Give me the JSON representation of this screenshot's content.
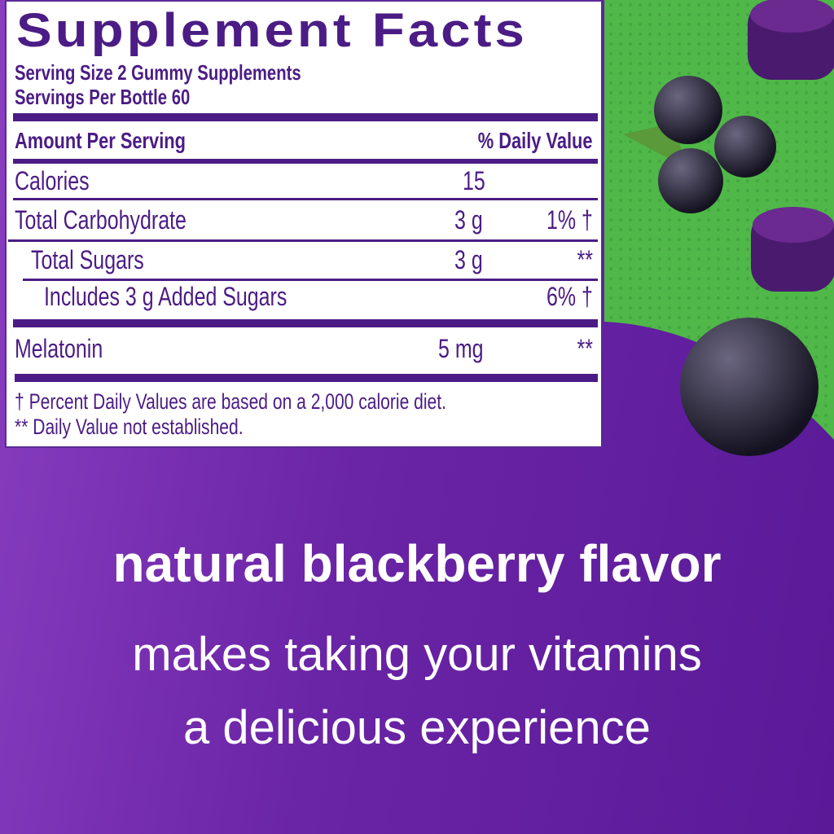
{
  "label": {
    "title": "Supplement Facts",
    "serving_size": "Serving Size 2 Gummy Supplements",
    "servings_per": "Servings Per Bottle 60",
    "header_left": "Amount Per Serving",
    "header_right": "% Daily Value",
    "rows": [
      {
        "name": "Calories",
        "amount": "15",
        "dv": ""
      },
      {
        "name": "Total Carbohydrate",
        "amount": "3 g",
        "dv": "1% †"
      },
      {
        "name": "Total Sugars",
        "amount": "3 g",
        "dv": "**"
      },
      {
        "name": "Includes 3 g Added Sugars",
        "amount": "",
        "dv": "6% †"
      },
      {
        "name": "Melatonin",
        "amount": "5 mg",
        "dv": "**"
      }
    ],
    "footnote_1": "† Percent Daily Values are based on a 2,000 calorie diet.",
    "footnote_2": "** Daily Value not established."
  },
  "tagline": {
    "headline": "natural blackberry flavor",
    "line_1": "makes taking your vitamins",
    "line_2": "a delicious experience"
  },
  "colors": {
    "label_text": "#4b1c85",
    "green": "#4fb848",
    "purple": "#6a24a6"
  }
}
